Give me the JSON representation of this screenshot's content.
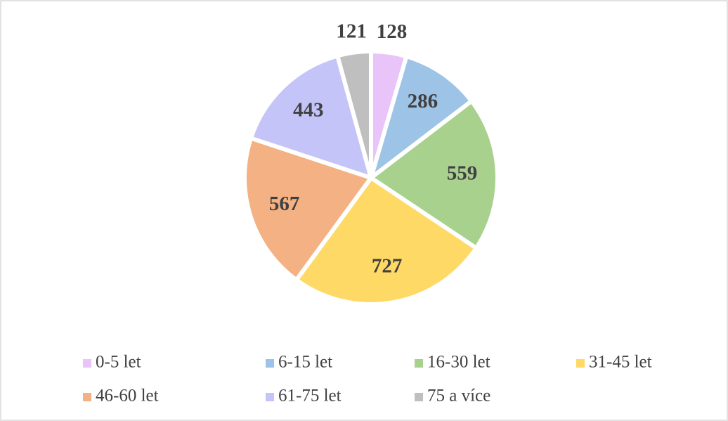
{
  "chart_data": {
    "type": "pie",
    "categories": [
      "0-5 let",
      "6-15 let",
      "16-30 let",
      "31-45 let",
      "46-60 let",
      "61-75 let",
      "75 a více"
    ],
    "values": [
      128,
      286,
      559,
      727,
      567,
      443,
      121
    ],
    "colors": [
      "#e8c4f8",
      "#9dc3e6",
      "#a9d18e",
      "#ffd966",
      "#f4b183",
      "#c4c4f8",
      "#bfbfbf"
    ],
    "legend": "bottom"
  }
}
